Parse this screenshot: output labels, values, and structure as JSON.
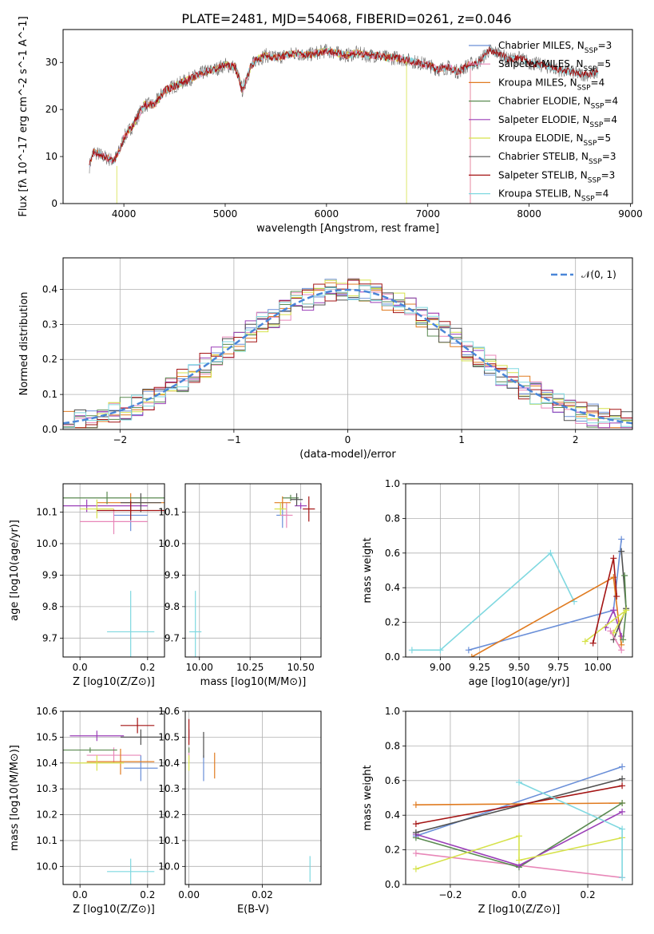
{
  "figure_title": "PLATE=2481, MJD=54068, FIBERID=0261, z=0.046",
  "colors": {
    "Chabrier MILES": "#6a8fd8",
    "Salpeter MILES": "#e887b8",
    "Kroupa MILES": "#e07b20",
    "Chabrier ELODIE": "#5a8a50",
    "Salpeter ELODIE": "#9b3fb8",
    "Kroupa ELODIE": "#d6e24a",
    "Chabrier STELIB": "#505050",
    "Salpeter STELIB": "#a41414",
    "Kroupa STELIB": "#7fd8e0"
  },
  "chart_data": [
    {
      "id": "spectrum",
      "type": "line",
      "title": "PLATE=2481, MJD=54068, FIBERID=0261, z=0.046",
      "xlabel": "wavelength [Angstrom, rest frame]",
      "ylabel": "Flux [fλ 10^-17 erg cm^-2 s^-1 A^-1]",
      "xlim": [
        3400,
        9020
      ],
      "ylim": [
        0,
        37
      ],
      "xticks": [
        4000,
        5000,
        6000,
        7000,
        8000,
        9000
      ],
      "yticks": [
        0,
        10,
        20,
        30
      ],
      "grid": false,
      "legend_position": "upper-right",
      "legend": [
        {
          "name": "Chabrier MILES",
          "nssp": "3"
        },
        {
          "name": "Salpeter MILES",
          "nssp": "5"
        },
        {
          "name": "Kroupa MILES",
          "nssp": "4"
        },
        {
          "name": "Chabrier ELODIE",
          "nssp": "4"
        },
        {
          "name": "Salpeter ELODIE",
          "nssp": "4"
        },
        {
          "name": "Kroupa ELODIE",
          "nssp": "5"
        },
        {
          "name": "Chabrier STELIB",
          "nssp": "3"
        },
        {
          "name": "Salpeter STELIB",
          "nssp": "3"
        },
        {
          "name": "Kroupa STELIB",
          "nssp": "4"
        }
      ],
      "continuum": {
        "x": [
          3660,
          3700,
          3800,
          3900,
          3950,
          4000,
          4100,
          4200,
          4300,
          4400,
          4500,
          4600,
          4700,
          4800,
          4900,
          5000,
          5100,
          5170,
          5250,
          5300,
          5400,
          5500,
          5600,
          5700,
          5800,
          5900,
          6000,
          6100,
          6200,
          6300,
          6400,
          6500,
          6600,
          6700,
          6800,
          6900,
          7000,
          7100,
          7200,
          7300,
          7400,
          7500,
          7600,
          7700,
          7800,
          7900,
          8000,
          8100,
          8200,
          8300,
          8400,
          8500,
          8600,
          8680
        ],
        "y": [
          8,
          11,
          10,
          9,
          11,
          14,
          17,
          21,
          21,
          24,
          25,
          26,
          27,
          28,
          28.5,
          29.5,
          29,
          24,
          29,
          30.5,
          31.5,
          31,
          31.5,
          32,
          31.5,
          32,
          32.5,
          32,
          31.5,
          32,
          31.5,
          31.5,
          31,
          31,
          30.5,
          30,
          29.5,
          28.5,
          29,
          28,
          29.5,
          30,
          32.5,
          32,
          30.5,
          31,
          30,
          29.5,
          29,
          28.5,
          28,
          27.5,
          27.5,
          28
        ]
      },
      "model_cutoffs": {
        "Kroupa ELODIE": {
          "lo": 3930,
          "hi": 6790
        },
        "Kroupa MILES": {
          "lo": 3660,
          "hi": 7420
        },
        "Salpeter MILES": {
          "lo": 3660,
          "hi": 7420
        }
      }
    },
    {
      "id": "residuals",
      "type": "histogram",
      "xlabel": "(data-model)/error",
      "ylabel": "Normed distribution",
      "xlim": [
        -2.5,
        2.5
      ],
      "ylim": [
        0,
        0.49
      ],
      "xticks": [
        -2,
        -1,
        0,
        1,
        2
      ],
      "yticks": [
        0.0,
        0.1,
        0.2,
        0.3,
        0.4
      ],
      "grid": true,
      "legend_position": "upper-right",
      "reference_curve": {
        "name": "N(0,1)",
        "mean": 0,
        "sigma": 1
      },
      "bin_width": 0.1
    },
    {
      "id": "age_vs_Z",
      "type": "scatter",
      "xlabel": "Z [log10(Z/Z⊙)]",
      "ylabel": "age [log10(age/yr)]",
      "xlim": [
        -0.05,
        0.25
      ],
      "ylim": [
        9.64,
        10.19
      ],
      "xticks": [
        0.0,
        0.2
      ],
      "yticks": [
        9.7,
        9.8,
        9.9,
        10.0,
        10.1
      ],
      "grid": true,
      "points": [
        {
          "series": "Chabrier MILES",
          "x": 0.15,
          "y": 10.09,
          "xerr": 0.05,
          "yerr": 0.05
        },
        {
          "series": "Salpeter MILES",
          "x": 0.1,
          "y": 10.07,
          "xerr": 0.1,
          "yerr": 0.04
        },
        {
          "series": "Kroupa MILES",
          "x": 0.15,
          "y": 10.13,
          "xerr": 0.1,
          "yerr": 0.03
        },
        {
          "series": "Chabrier ELODIE",
          "x": 0.08,
          "y": 10.145,
          "xerr": 0.18,
          "yerr": 0.02
        },
        {
          "series": "Salpeter ELODIE",
          "x": 0.02,
          "y": 10.12,
          "xerr": 0.18,
          "yerr": 0.02
        },
        {
          "series": "Kroupa ELODIE",
          "x": 0.05,
          "y": 10.11,
          "xerr": 0.05,
          "yerr": 0.03
        },
        {
          "series": "Chabrier STELIB",
          "x": 0.18,
          "y": 10.13,
          "xerr": 0.06,
          "yerr": 0.03
        },
        {
          "series": "Salpeter STELIB",
          "x": 0.15,
          "y": 10.105,
          "xerr": 0.1,
          "yerr": 0.03
        },
        {
          "series": "Kroupa STELIB",
          "x": 0.15,
          "y": 9.72,
          "xerr": 0.07,
          "yerr": 0.13
        }
      ]
    },
    {
      "id": "age_vs_mass",
      "type": "scatter",
      "xlabel": "mass [log10(M/M⊙)]",
      "ylabel": "",
      "xlim": [
        9.93,
        10.6
      ],
      "ylim": [
        9.64,
        10.19
      ],
      "xticks": [
        10.0,
        10.25,
        10.5
      ],
      "yticks": [
        9.7,
        9.8,
        9.9,
        10.0,
        10.1
      ],
      "grid": true,
      "points": [
        {
          "series": "Chabrier MILES",
          "x": 10.41,
          "y": 10.09,
          "xerr": 0.03,
          "yerr": 0.04
        },
        {
          "series": "Salpeter MILES",
          "x": 10.43,
          "y": 10.09,
          "xerr": 0.03,
          "yerr": 0.04
        },
        {
          "series": "Kroupa MILES",
          "x": 10.41,
          "y": 10.13,
          "xerr": 0.04,
          "yerr": 0.02
        },
        {
          "series": "Chabrier ELODIE",
          "x": 10.45,
          "y": 10.145,
          "xerr": 0.04,
          "yerr": 0.01
        },
        {
          "series": "Salpeter ELODIE",
          "x": 10.5,
          "y": 10.12,
          "xerr": 0.03,
          "yerr": 0.01
        },
        {
          "series": "Kroupa ELODIE",
          "x": 10.4,
          "y": 10.11,
          "xerr": 0.03,
          "yerr": 0.02
        },
        {
          "series": "Chabrier STELIB",
          "x": 10.48,
          "y": 10.14,
          "xerr": 0.03,
          "yerr": 0.02
        },
        {
          "series": "Salpeter STELIB",
          "x": 10.54,
          "y": 10.11,
          "xerr": 0.03,
          "yerr": 0.04
        },
        {
          "series": "Kroupa STELIB",
          "x": 9.98,
          "y": 9.72,
          "xerr": 0.03,
          "yerr": 0.13
        }
      ]
    },
    {
      "id": "weight_vs_age",
      "type": "line",
      "xlabel": "age [log10(age/yr)]",
      "ylabel": "mass weight",
      "xlim": [
        8.78,
        10.22
      ],
      "ylim": [
        0,
        1.0
      ],
      "xticks": [
        9.0,
        9.25,
        9.5,
        9.75,
        10.0
      ],
      "yticks": [
        0.0,
        0.2,
        0.4,
        0.6,
        0.8,
        1.0
      ],
      "grid": true,
      "series": [
        {
          "name": "Kroupa STELIB",
          "x": [
            8.82,
            9.0,
            9.7,
            9.85
          ],
          "y": [
            0.04,
            0.04,
            0.6,
            0.32
          ]
        },
        {
          "name": "Chabrier MILES",
          "x": [
            9.18,
            10.1,
            10.15
          ],
          "y": [
            0.04,
            0.27,
            0.68
          ]
        },
        {
          "name": "Kroupa MILES",
          "x": [
            9.2,
            10.1,
            10.15
          ],
          "y": [
            0.0,
            0.46,
            0.07
          ]
        },
        {
          "name": "Salpeter ELODIE",
          "x": [
            10.05,
            10.1,
            10.15
          ],
          "y": [
            0.17,
            0.27,
            0.12
          ]
        },
        {
          "name": "Chabrier STELIB",
          "x": [
            10.15,
            10.18,
            10.1
          ],
          "y": [
            0.61,
            0.28,
            0.1
          ]
        },
        {
          "name": "Chabrier ELODIE",
          "x": [
            10.17,
            10.18,
            10.16
          ],
          "y": [
            0.47,
            0.27,
            0.1
          ]
        },
        {
          "name": "Kroupa ELODIE",
          "x": [
            9.92,
            10.18,
            10.1
          ],
          "y": [
            0.09,
            0.27,
            0.14
          ]
        },
        {
          "name": "Salpeter STELIB",
          "x": [
            9.97,
            10.1,
            10.12
          ],
          "y": [
            0.08,
            0.57,
            0.35
          ]
        },
        {
          "name": "Salpeter MILES",
          "x": [
            10.08,
            10.15
          ],
          "y": [
            0.15,
            0.04
          ]
        }
      ]
    },
    {
      "id": "mass_vs_Z",
      "type": "scatter",
      "xlabel": "Z [log10(Z/Z⊙)]",
      "ylabel": "mass [log10(M/M⊙)]",
      "xlim": [
        -0.05,
        0.25
      ],
      "ylim": [
        9.93,
        10.6
      ],
      "xticks": [
        0.0,
        0.2
      ],
      "yticks": [
        10.0,
        10.1,
        10.2,
        10.3,
        10.4,
        10.5,
        10.6
      ],
      "grid": true,
      "points": [
        {
          "series": "Chabrier MILES",
          "x": 0.18,
          "y": 10.38,
          "xerr": 0.05,
          "yerr": 0.05
        },
        {
          "series": "Salpeter MILES",
          "x": 0.1,
          "y": 10.43,
          "xerr": 0.08,
          "yerr": 0.03
        },
        {
          "series": "Kroupa MILES",
          "x": 0.12,
          "y": 10.405,
          "xerr": 0.1,
          "yerr": 0.05
        },
        {
          "series": "Chabrier ELODIE",
          "x": 0.03,
          "y": 10.45,
          "xerr": 0.08,
          "yerr": 0.01
        },
        {
          "series": "Salpeter ELODIE",
          "x": 0.05,
          "y": 10.505,
          "xerr": 0.08,
          "yerr": 0.02
        },
        {
          "series": "Kroupa ELODIE",
          "x": 0.05,
          "y": 10.4,
          "xerr": 0.08,
          "yerr": 0.03
        },
        {
          "series": "Chabrier STELIB",
          "x": 0.18,
          "y": 10.5,
          "xerr": 0.06,
          "yerr": 0.03
        },
        {
          "series": "Salpeter STELIB",
          "x": 0.17,
          "y": 10.545,
          "xerr": 0.05,
          "yerr": 0.03
        },
        {
          "series": "Kroupa STELIB",
          "x": 0.15,
          "y": 9.98,
          "xerr": 0.07,
          "yerr": 0.05
        }
      ]
    },
    {
      "id": "mass_vs_EBV",
      "type": "scatter",
      "xlabel": "E(B-V)",
      "ylabel": "",
      "xlim": [
        -0.001,
        0.036
      ],
      "ylim": [
        9.93,
        10.6
      ],
      "xticks": [
        0.0,
        0.02
      ],
      "yticks": [
        10.0,
        10.1,
        10.2,
        10.3,
        10.4,
        10.5,
        10.6
      ],
      "grid": true,
      "points": [
        {
          "series": "Chabrier MILES",
          "x": 0.004,
          "y": 10.38,
          "xerr": 0,
          "yerr": 0.05
        },
        {
          "series": "Salpeter MILES",
          "x": 0.0,
          "y": 10.43,
          "xerr": 0,
          "yerr": 0.03
        },
        {
          "series": "Kroupa MILES",
          "x": 0.007,
          "y": 10.39,
          "xerr": 0,
          "yerr": 0.05
        },
        {
          "series": "Chabrier ELODIE",
          "x": 0.0,
          "y": 10.45,
          "xerr": 0,
          "yerr": 0.01
        },
        {
          "series": "Salpeter ELODIE",
          "x": 0.0,
          "y": 10.51,
          "xerr": 0,
          "yerr": 0.02
        },
        {
          "series": "Kroupa ELODIE",
          "x": 0.0,
          "y": 10.4,
          "xerr": 0,
          "yerr": 0.03
        },
        {
          "series": "Chabrier STELIB",
          "x": 0.004,
          "y": 10.47,
          "xerr": 0,
          "yerr": 0.05
        },
        {
          "series": "Salpeter STELIB",
          "x": 0.0,
          "y": 10.52,
          "xerr": 0,
          "yerr": 0.05
        },
        {
          "series": "Kroupa STELIB",
          "x": 0.033,
          "y": 9.99,
          "xerr": 0,
          "yerr": 0.05
        }
      ]
    },
    {
      "id": "weight_vs_Z",
      "type": "line",
      "xlabel": "Z [log10(Z/Z⊙)]",
      "ylabel": "mass weight",
      "xlim": [
        -0.33,
        0.33
      ],
      "ylim": [
        0,
        1.0
      ],
      "xticks": [
        -0.2,
        0.0,
        0.2
      ],
      "yticks": [
        0.0,
        0.2,
        0.4,
        0.6,
        0.8,
        1.0
      ],
      "grid": true,
      "series": [
        {
          "name": "Chabrier MILES",
          "x": [
            -0.3,
            0.3
          ],
          "y": [
            0.28,
            0.68
          ]
        },
        {
          "name": "Salpeter MILES",
          "x": [
            -0.3,
            0.3
          ],
          "y": [
            0.18,
            0.04
          ]
        },
        {
          "name": "Kroupa MILES",
          "x": [
            -0.3,
            0.3
          ],
          "y": [
            0.46,
            0.47
          ]
        },
        {
          "name": "Chabrier ELODIE",
          "x": [
            -0.3,
            0.0,
            0.3
          ],
          "y": [
            0.27,
            0.1,
            0.47
          ]
        },
        {
          "name": "Salpeter ELODIE",
          "x": [
            -0.3,
            0.0,
            0.3
          ],
          "y": [
            0.29,
            0.11,
            0.42
          ]
        },
        {
          "name": "Kroupa ELODIE",
          "x": [
            -0.3,
            0.0,
            0.0,
            0.3
          ],
          "y": [
            0.09,
            0.28,
            0.14,
            0.27
          ]
        },
        {
          "name": "Chabrier STELIB",
          "x": [
            -0.3,
            0.3
          ],
          "y": [
            0.3,
            0.61
          ]
        },
        {
          "name": "Salpeter STELIB",
          "x": [
            -0.3,
            0.3
          ],
          "y": [
            0.35,
            0.57
          ]
        },
        {
          "name": "Kroupa STELIB",
          "x": [
            0.0,
            0.3,
            0.3
          ],
          "y": [
            0.59,
            0.32,
            0.04
          ]
        }
      ]
    }
  ]
}
